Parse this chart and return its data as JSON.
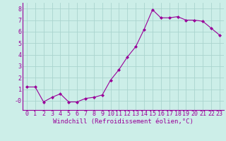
{
  "x": [
    0,
    1,
    2,
    3,
    4,
    5,
    6,
    7,
    8,
    9,
    10,
    11,
    12,
    13,
    14,
    15,
    16,
    17,
    18,
    19,
    20,
    21,
    22,
    23
  ],
  "y": [
    1.2,
    1.2,
    -0.1,
    0.3,
    0.6,
    -0.1,
    -0.1,
    0.2,
    0.3,
    0.5,
    1.8,
    2.7,
    3.8,
    4.7,
    6.2,
    7.9,
    7.2,
    7.2,
    7.3,
    7.0,
    7.0,
    6.9,
    6.3,
    5.7
  ],
  "line_color": "#990099",
  "marker": "D",
  "marker_size": 2,
  "bg_color": "#cceee8",
  "grid_color": "#aad4ce",
  "xlabel": "Windchill (Refroidissement éolien,°C)",
  "xlabel_color": "#990099",
  "xlabel_fontsize": 6.5,
  "tick_color": "#990099",
  "tick_fontsize": 6,
  "ylim": [
    -0.8,
    8.5
  ],
  "yticks": [
    0,
    1,
    2,
    3,
    4,
    5,
    6,
    7,
    8
  ],
  "ytick_labels": [
    "-0",
    "1",
    "2",
    "3",
    "4",
    "5",
    "6",
    "7",
    "8"
  ],
  "xlim": [
    -0.5,
    23.5
  ],
  "xtick_labels": [
    "0",
    "1",
    "2",
    "3",
    "4",
    "5",
    "6",
    "7",
    "8",
    "9",
    "10",
    "11",
    "12",
    "13",
    "14",
    "15",
    "16",
    "17",
    "18",
    "19",
    "20",
    "21",
    "22",
    "23"
  ]
}
